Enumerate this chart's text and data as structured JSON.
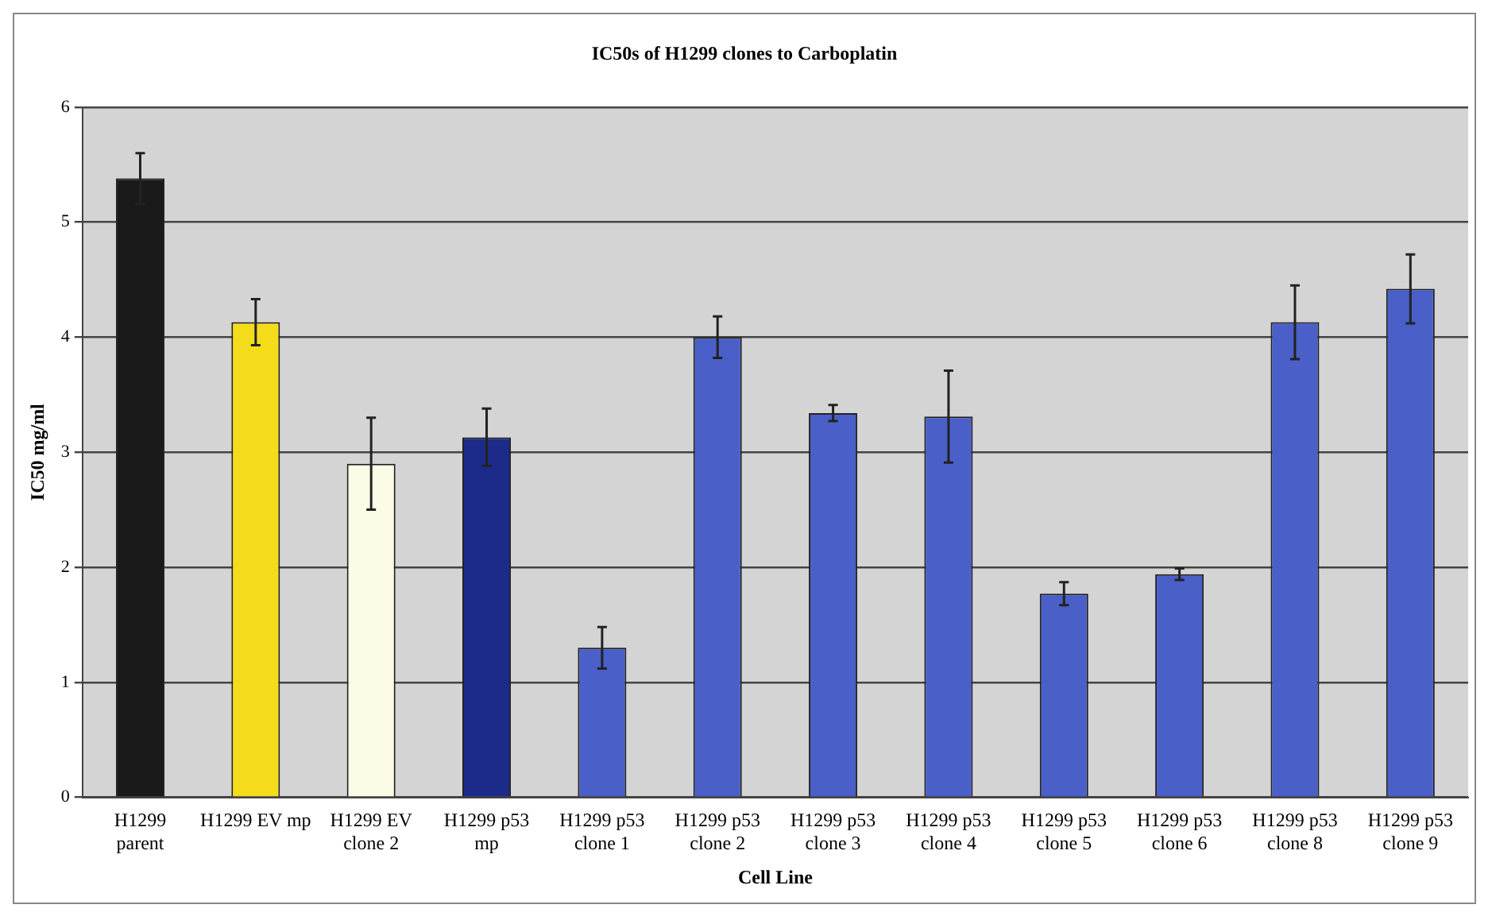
{
  "chart_data": {
    "type": "bar",
    "title": "IC50s of H1299 clones to Carboplatin",
    "xlabel": "Cell Line",
    "ylabel": "IC50 mg/ml",
    "categories": [
      "H1299 parent",
      "H1299 EV mp",
      "H1299 EV clone 2",
      "H1299 p53 mp",
      "H1299 p53 clone 1",
      "H1299 p53 clone 2",
      "H1299 p53 clone 3",
      "H1299 p53 clone 4",
      "H1299 p53 clone 5",
      "H1299 p53 clone 6",
      "H1299 p53 clone 8",
      "H1299 p53 clone 9"
    ],
    "values": [
      5.38,
      4.13,
      2.9,
      3.13,
      1.3,
      4.0,
      3.34,
      3.31,
      1.77,
      1.94,
      4.13,
      4.42
    ],
    "errors": [
      0.22,
      0.2,
      0.4,
      0.25,
      0.18,
      0.18,
      0.07,
      0.4,
      0.1,
      0.05,
      0.32,
      0.3
    ],
    "colors": [
      "#1a1a1a",
      "#f5dc1a",
      "#fbfbe6",
      "#1c2a8a",
      "#4a5fc8",
      "#4a5fc8",
      "#4a5fc8",
      "#4a5fc8",
      "#4a5fc8",
      "#4a5fc8",
      "#4a5fc8",
      "#4a5fc8"
    ],
    "ylim": [
      0,
      6
    ],
    "yticks": [
      0,
      1,
      2,
      3,
      4,
      5,
      6
    ],
    "grid": "y",
    "legend": false
  }
}
